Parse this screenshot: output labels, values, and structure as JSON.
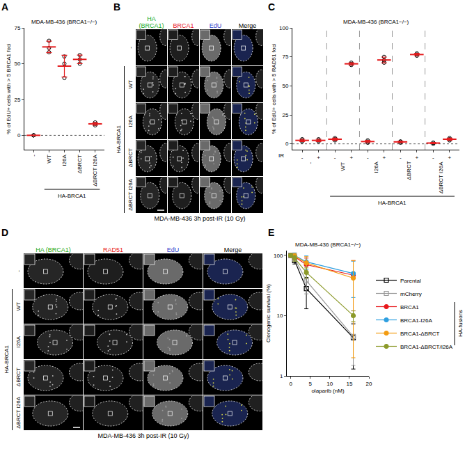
{
  "panel_labels": [
    "A",
    "B",
    "C",
    "D",
    "E"
  ],
  "chart_data": [
    {
      "type": "scatter",
      "title": "MDA-MB-436 (BRCA1−/−)",
      "y_label": "% of EdU+ cells with > 5 BRCA1 foci",
      "categories": [
        "-",
        "WT",
        "I26A",
        "ΔBRCT",
        "ΔBRCT I26A"
      ],
      "values": [
        0,
        61.7,
        48.3,
        53,
        8
      ],
      "error": [
        0,
        4,
        7.6,
        3,
        1
      ],
      "points": [
        [
          0,
          0,
          0
        ],
        [
          66,
          58,
          61
        ],
        [
          55,
          40,
          50
        ],
        [
          56,
          50,
          53
        ],
        [
          7,
          8,
          9
        ]
      ],
      "color": "#e41a1c",
      "ylim": [
        -10,
        75
      ],
      "yticks": [
        0,
        25,
        50,
        75
      ],
      "annotations": [
        "HA-BRCA1"
      ]
    },
    {
      "type": "scatter",
      "title": "MDA-MB-436 (BRCA1−/−)",
      "y_label": "% of EdU+ cells with > 5 RAD51 foci",
      "categories": [
        "-",
        "+",
        "-",
        "+",
        "-",
        "+",
        "-",
        "+",
        "-",
        "+"
      ],
      "groups": [
        "-",
        "WT",
        "I26A",
        "ΔBRCT",
        "ΔBRCT I26A"
      ],
      "values": [
        3,
        3,
        4,
        69,
        2,
        72.3,
        1.7,
        77,
        0.7,
        4
      ],
      "error": [
        1,
        1,
        1,
        1,
        1,
        2.5,
        0.6,
        1,
        0.6,
        1
      ],
      "points": [
        [
          3,
          2,
          4
        ],
        [
          2,
          3,
          4
        ],
        [
          4,
          3,
          5
        ],
        [
          68,
          70,
          69
        ],
        [
          1,
          2,
          3
        ],
        [
          70,
          75,
          72
        ],
        [
          1,
          2,
          2
        ],
        [
          76,
          78,
          77
        ],
        [
          0,
          1,
          1
        ],
        [
          3,
          4,
          5
        ]
      ],
      "color": "#e41a1c",
      "ylim": [
        -5,
        100
      ],
      "yticks": [
        0,
        25,
        50,
        75,
        100
      ],
      "annotations": [
        "IR",
        "HA-BRCA1"
      ]
    },
    {
      "type": "line",
      "title": "MDA-MB-436 (BRCA1−/−)",
      "x_label": "olaparib (nM)",
      "y_label": "Clonogenic survival (%)",
      "x": [
        0,
        1,
        4,
        16
      ],
      "series": [
        {
          "name": "Parental",
          "color": "#000000",
          "marker": "square-open",
          "values": [
            100,
            82,
            28,
            4.3
          ],
          "error": [
            5,
            10,
            15,
            3
          ]
        },
        {
          "name": "mCherry",
          "color": "#9a9a9a",
          "marker": "square-open",
          "values": [
            100,
            88,
            38,
            4.5
          ],
          "error": [
            5,
            8,
            15,
            3
          ]
        },
        {
          "name": "BRCA1",
          "color": "#e8191c",
          "marker": "circle",
          "values": [
            100,
            95,
            70,
            47
          ],
          "error": [
            5,
            10,
            20,
            35
          ]
        },
        {
          "name": "BRCA1-I26A",
          "color": "#2e9fe0",
          "marker": "circle",
          "values": [
            100,
            100,
            78,
            50
          ],
          "error": [
            5,
            10,
            20,
            30
          ]
        },
        {
          "name": "BRCA1-ΔBRCT",
          "color": "#f39c12",
          "marker": "circle",
          "values": [
            100,
            98,
            75,
            42
          ],
          "error": [
            5,
            10,
            20,
            40
          ]
        },
        {
          "name": "BRCA1-ΔBRCT/I26A",
          "color": "#8c9a2a",
          "marker": "circle",
          "values": [
            100,
            90,
            52,
            10
          ],
          "error": [
            5,
            10,
            10,
            2
          ]
        }
      ],
      "log": "y",
      "xlim": [
        -1,
        20
      ],
      "xticks": [
        0,
        5,
        10,
        15,
        20
      ],
      "ylim": [
        1,
        120
      ],
      "yticks": [
        1,
        10,
        100
      ],
      "legend": "right",
      "annotations": [
        "HA-fusions"
      ]
    }
  ],
  "image_panels": [
    {
      "panel": "B",
      "columns": [
        "HA (BRCA1)",
        "BRCA1",
        "EdU",
        "Merge"
      ],
      "column_colors": [
        "#22aa22",
        "#e8191c",
        "#3344cc",
        "#000000"
      ],
      "rows": [
        "-",
        "WT",
        "I26A",
        "ΔBRCT",
        "ΔBRCT I26A"
      ],
      "group_label": "HA-BRCA1",
      "caption": "MDA-MB-436 3h post-IR (10 Gy)"
    },
    {
      "panel": "D",
      "columns": [
        "HA (BRCA1)",
        "RAD51",
        "EdU",
        "Merge"
      ],
      "column_colors": [
        "#22aa22",
        "#e8191c",
        "#3344cc",
        "#000000"
      ],
      "rows": [
        "-",
        "WT",
        "I26A",
        "ΔBRCT",
        "ΔBRCT I26A"
      ],
      "group_label": "HA-BRCA1",
      "caption": "MDA-MB-436 3h post-IR (10 Gy)"
    }
  ]
}
